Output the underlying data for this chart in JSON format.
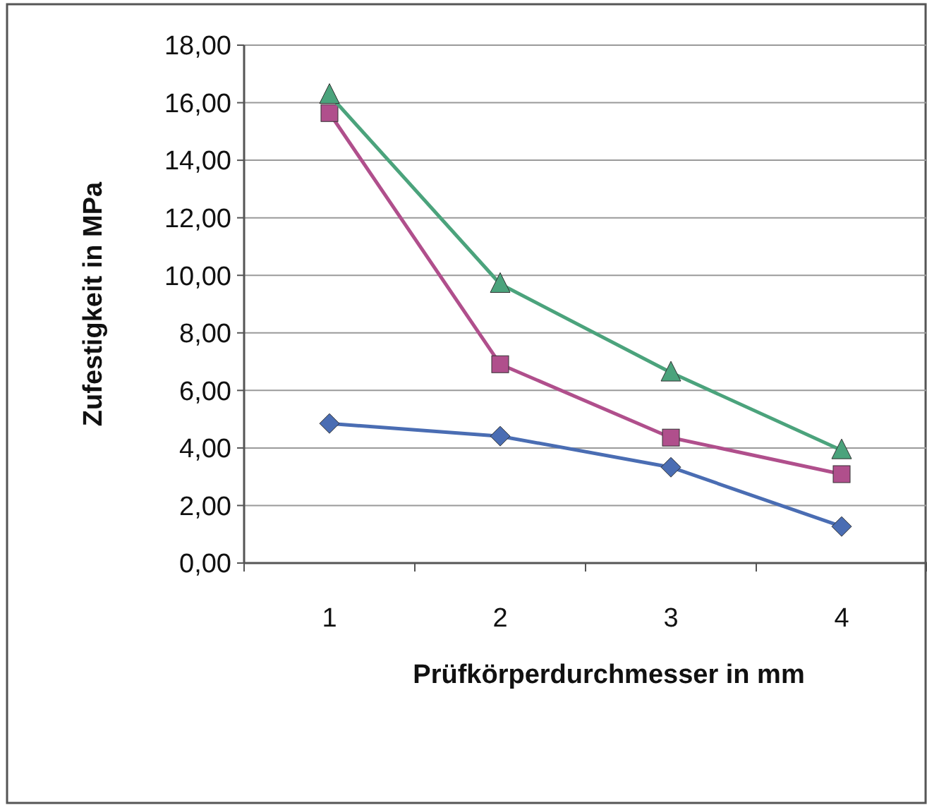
{
  "chart_data": {
    "type": "line",
    "xlabel": "Prüfkörperdurchmesser in mm",
    "ylabel": "Zufestigkeit in MPa",
    "categories": [
      "1",
      "2",
      "3",
      "4"
    ],
    "series": [
      {
        "color": "#4a6db3",
        "marker": "diamond",
        "values": [
          4.85,
          4.41,
          3.33,
          1.27
        ]
      },
      {
        "color": "#b04f8c",
        "marker": "square",
        "values": [
          15.64,
          6.91,
          4.36,
          3.09
        ]
      },
      {
        "color": "#4ba37c",
        "marker": "triangle",
        "values": [
          16.27,
          9.7,
          6.62,
          3.92
        ]
      }
    ],
    "ylim": [
      0,
      18
    ],
    "yticks": [
      {
        "value": 0,
        "label": "0,00"
      },
      {
        "value": 2,
        "label": "2,00"
      },
      {
        "value": 4,
        "label": "4,00"
      },
      {
        "value": 6,
        "label": "6,00"
      },
      {
        "value": 8,
        "label": "8,00"
      },
      {
        "value": 10,
        "label": "10,00"
      },
      {
        "value": 12,
        "label": "12,00"
      },
      {
        "value": 14,
        "label": "14,00"
      },
      {
        "value": 16,
        "label": "16,00"
      },
      {
        "value": 18,
        "label": "18,00"
      }
    ],
    "grid": "y",
    "line_style": "solid"
  }
}
